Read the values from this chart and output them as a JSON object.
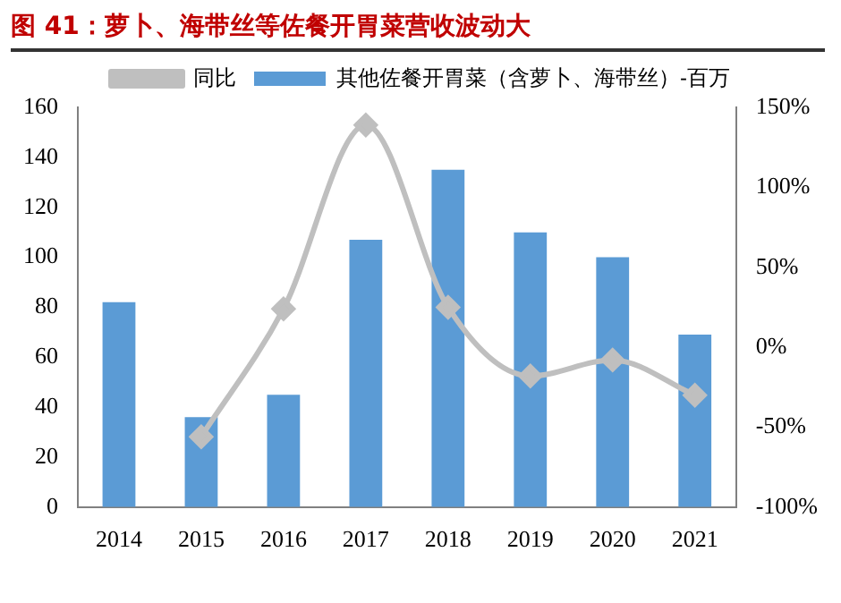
{
  "chart_data": {
    "type": "bar",
    "title": "图 41：萝卜、海带丝等佐餐开胃菜营收波动大",
    "categories": [
      "2014",
      "2015",
      "2016",
      "2017",
      "2018",
      "2019",
      "2020",
      "2021"
    ],
    "series": [
      {
        "name": "其他佐餐开胃菜（含萝卜、海带丝）-百万",
        "color": "#5b9bd5",
        "values": [
          82,
          36,
          45,
          107,
          135,
          110,
          100,
          69
        ]
      },
      {
        "name": "同比",
        "type": "line",
        "axis": "y2",
        "color": "#bfbfbf",
        "marker": "diamond",
        "values": [
          null,
          -56,
          24,
          139,
          25,
          -18,
          -8,
          -30
        ]
      }
    ],
    "ylim": [
      0,
      160
    ],
    "yticks": [
      0,
      20,
      40,
      60,
      80,
      100,
      120,
      140,
      160
    ],
    "y2lim": [
      -100,
      150
    ],
    "y2ticks": [
      {
        "value": -100,
        "label": "-100%"
      },
      {
        "value": -50,
        "label": "-50%"
      },
      {
        "value": 0,
        "label": "0%"
      },
      {
        "value": 50,
        "label": "50%"
      },
      {
        "value": 100,
        "label": "100%"
      },
      {
        "value": 150,
        "label": "150%"
      }
    ],
    "legend": "top",
    "grid": false
  }
}
